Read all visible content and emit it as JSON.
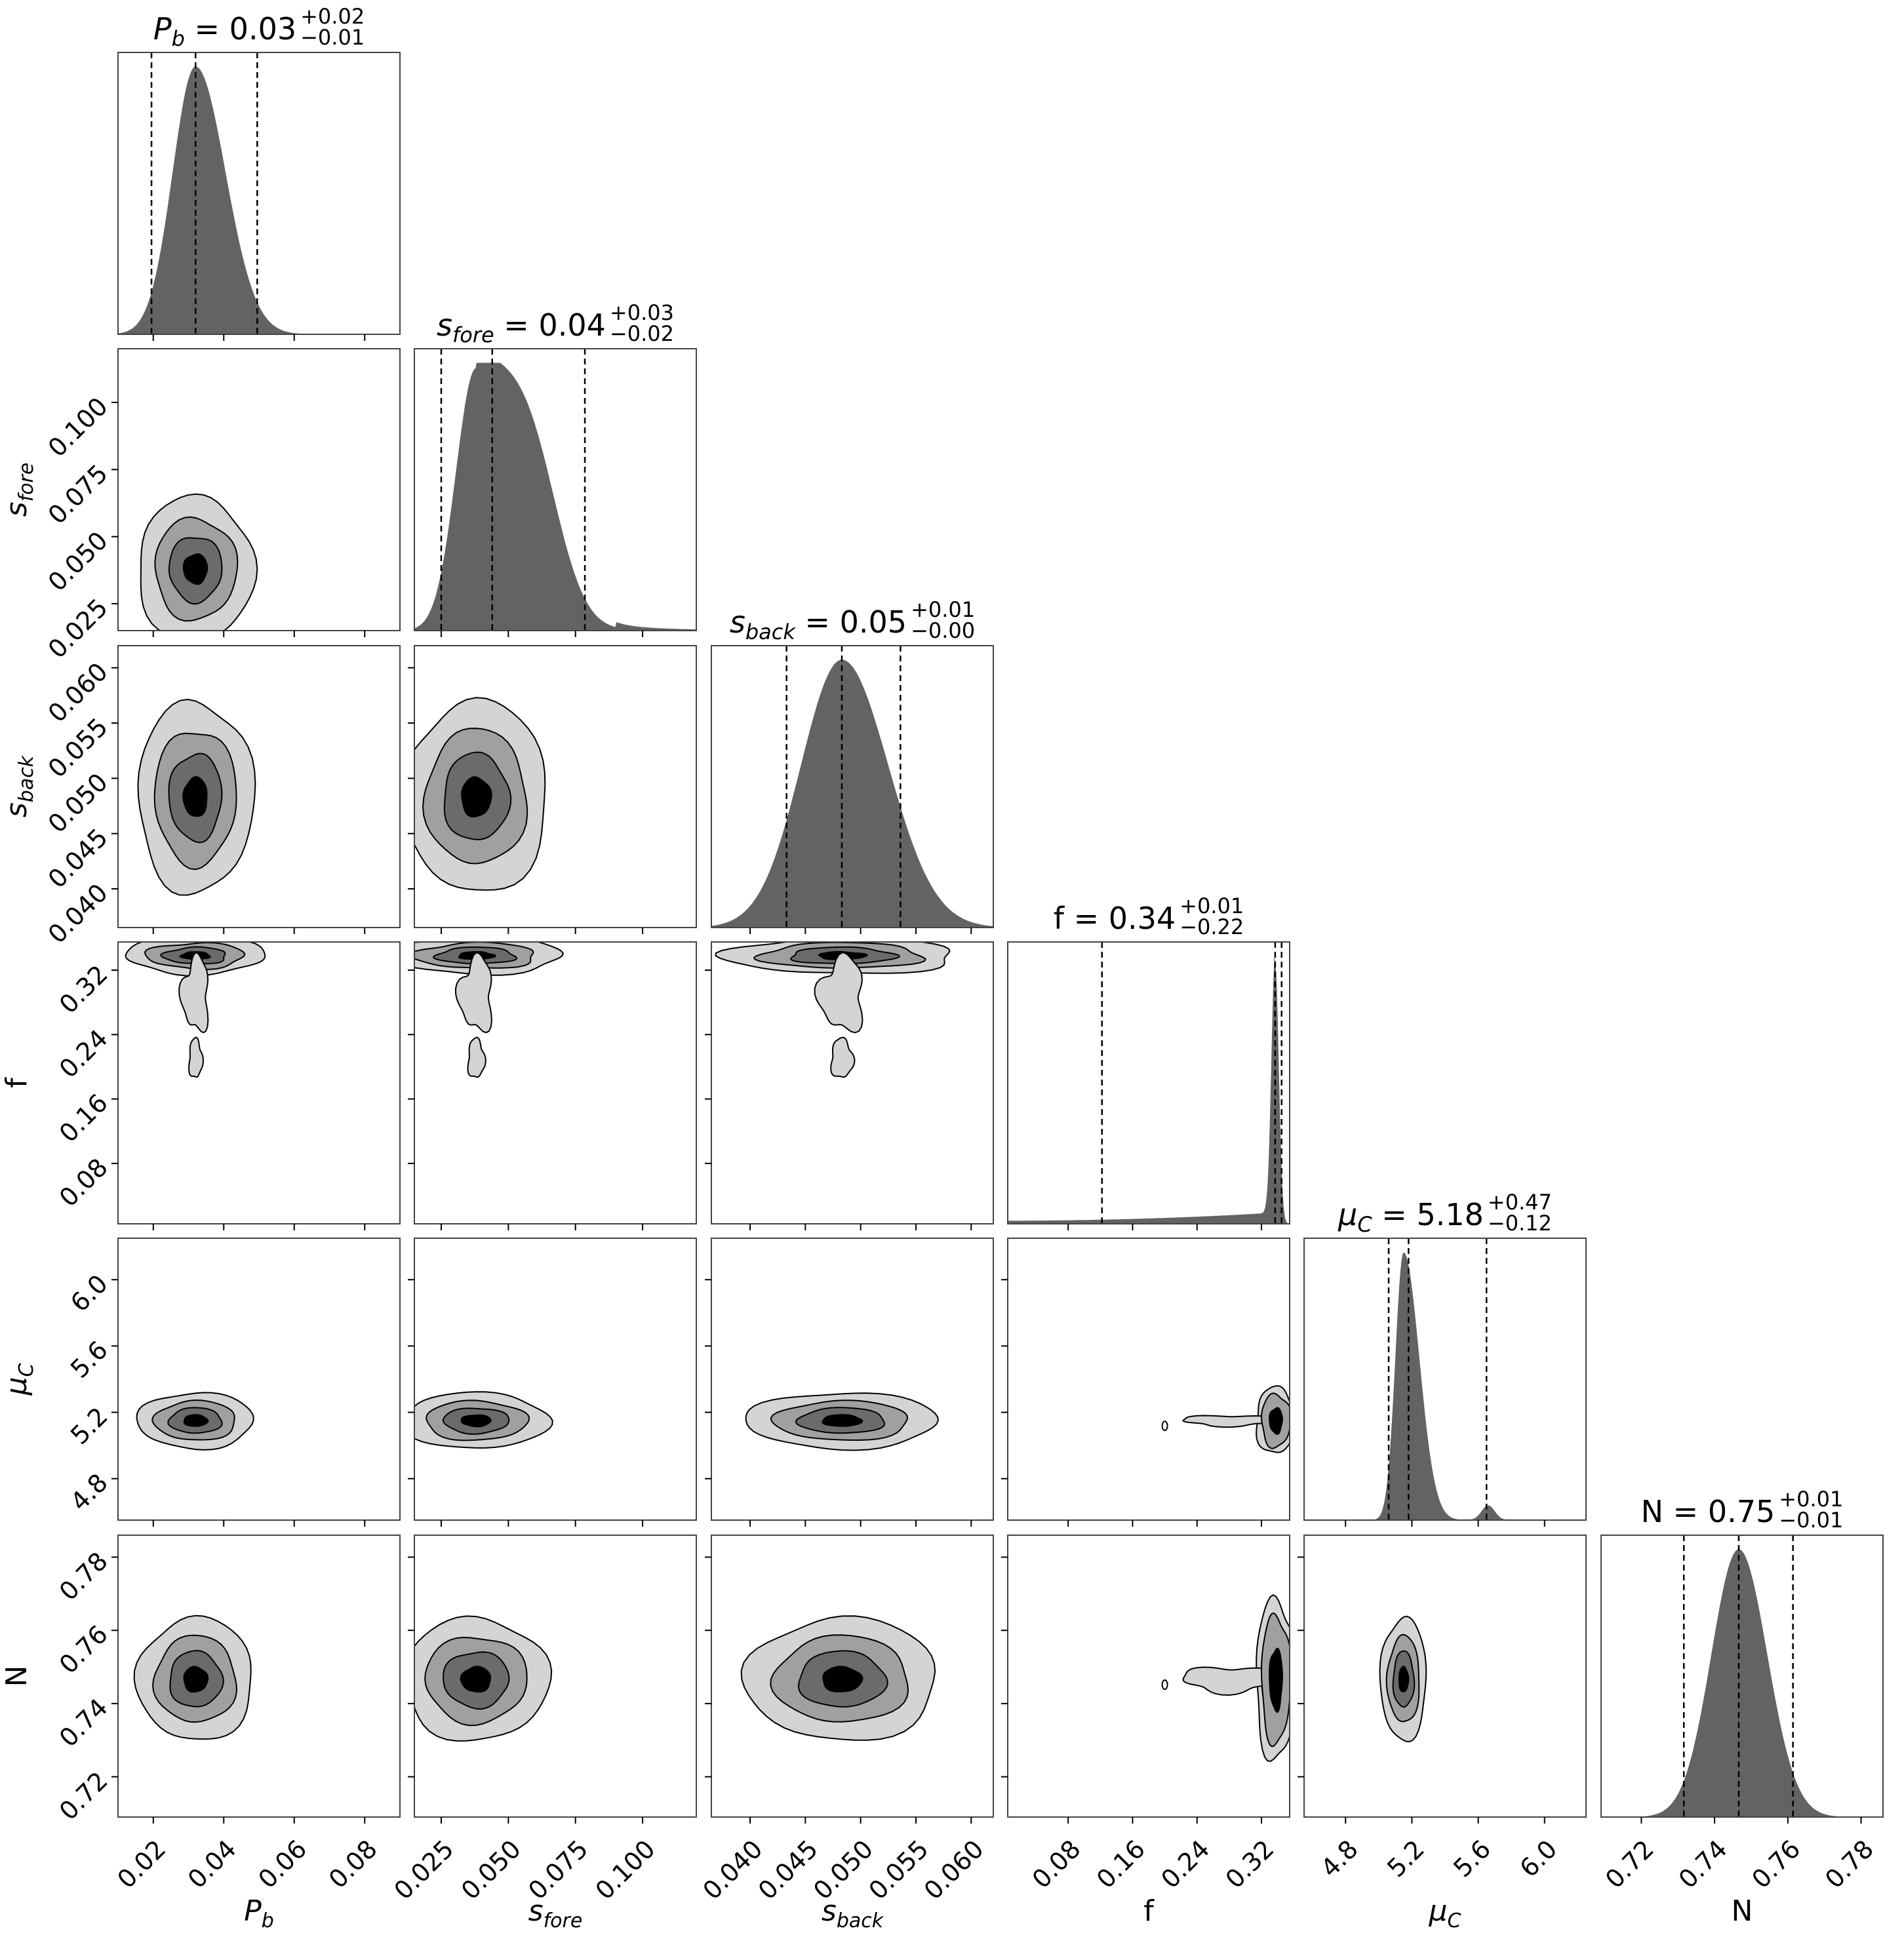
{
  "chart_data": {
    "type": "corner",
    "parameters": [
      {
        "key": "pb",
        "label": "P",
        "sub": "b",
        "italic": true,
        "range": [
          0.01,
          0.09
        ],
        "ticks": [
          0.02,
          0.04,
          0.06,
          0.08
        ],
        "tick_labels": [
          "0.02",
          "0.04",
          "0.06",
          "0.08"
        ],
        "median": 0.032,
        "q16": 0.0195,
        "q84": 0.0495,
        "mode": 0.032,
        "left_tail_sd": 0.0065,
        "right_tail_sd": 0.0085,
        "title_name": "P",
        "title_sub": "b",
        "title_value": "0.03",
        "title_plus": "+0.02",
        "title_minus": "−0.01"
      },
      {
        "key": "sfore",
        "label": "s",
        "sub": "fore",
        "italic": true,
        "range": [
          0.015,
          0.12
        ],
        "ticks": [
          0.025,
          0.05,
          0.075,
          0.1
        ],
        "tick_labels": [
          "0.025",
          "0.050",
          "0.075",
          "0.100"
        ],
        "median": 0.044,
        "q16": 0.025,
        "q84": 0.0785,
        "mode": 0.038,
        "left_tail_sd": 0.0075,
        "right_tail_sd": 0.017,
        "title_name": "s",
        "title_sub": "fore",
        "title_value": "0.04",
        "title_plus": "+0.03",
        "title_minus": "−0.02"
      },
      {
        "key": "sback",
        "label": "s",
        "sub": "back",
        "italic": true,
        "range": [
          0.0365,
          0.062
        ],
        "ticks": [
          0.04,
          0.045,
          0.05,
          0.055,
          0.06
        ],
        "tick_labels": [
          "0.040",
          "0.045",
          "0.050",
          "0.055",
          "0.060"
        ],
        "median": 0.0483,
        "q16": 0.0433,
        "q84": 0.0536,
        "mode": 0.0483,
        "left_tail_sd": 0.0037,
        "right_tail_sd": 0.0042,
        "title_name": "s",
        "title_sub": "back",
        "title_value": "0.05",
        "title_plus": "+0.01",
        "title_minus": "−0.00"
      },
      {
        "key": "f",
        "label": "f",
        "sub": "",
        "italic": false,
        "range": [
          0.005,
          0.355
        ],
        "ticks": [
          0.08,
          0.16,
          0.24,
          0.32
        ],
        "tick_labels": [
          "0.08",
          "0.16",
          "0.24",
          "0.32"
        ],
        "median": 0.337,
        "q16": 0.122,
        "q84": 0.345,
        "mode": 0.338,
        "left_tail_sd": 0.005,
        "right_tail_sd": 0.005,
        "title_name": "f",
        "title_sub": "",
        "title_value": "0.34",
        "title_plus": "+0.01",
        "title_minus": "−0.22"
      },
      {
        "key": "muc",
        "label": "μ",
        "sub": "C",
        "italic": true,
        "range": [
          4.55,
          6.25
        ],
        "ticks": [
          4.8,
          5.2,
          5.6,
          6.0
        ],
        "tick_labels": [
          "4.8",
          "5.2",
          "5.6",
          "6.0"
        ],
        "median": 5.18,
        "q16": 5.06,
        "q84": 5.65,
        "mode": 5.15,
        "left_tail_sd": 0.05,
        "right_tail_sd": 0.09,
        "title_name": "μ",
        "title_sub": "C",
        "title_value": "5.18",
        "title_plus": "+0.47",
        "title_minus": "−0.12"
      },
      {
        "key": "n",
        "label": "N",
        "sub": "",
        "italic": false,
        "range": [
          0.709,
          0.786
        ],
        "ticks": [
          0.72,
          0.74,
          0.76,
          0.78
        ],
        "tick_labels": [
          "0.72",
          "0.74",
          "0.76",
          "0.78"
        ],
        "median": 0.7466,
        "q16": 0.7316,
        "q84": 0.7614,
        "mode": 0.7466,
        "left_tail_sd": 0.0075,
        "right_tail_sd": 0.0078,
        "title_name": "N",
        "title_sub": "",
        "title_value": "0.75",
        "title_plus": "+0.01",
        "title_minus": "−0.01"
      }
    ],
    "colors": {
      "hist_fill": "#636363",
      "contour_levels": [
        "#d4d4d4",
        "#a0a0a0",
        "#6b6b6b",
        "#000000"
      ],
      "frame": "#444444",
      "quantile_line": "#000000"
    }
  }
}
